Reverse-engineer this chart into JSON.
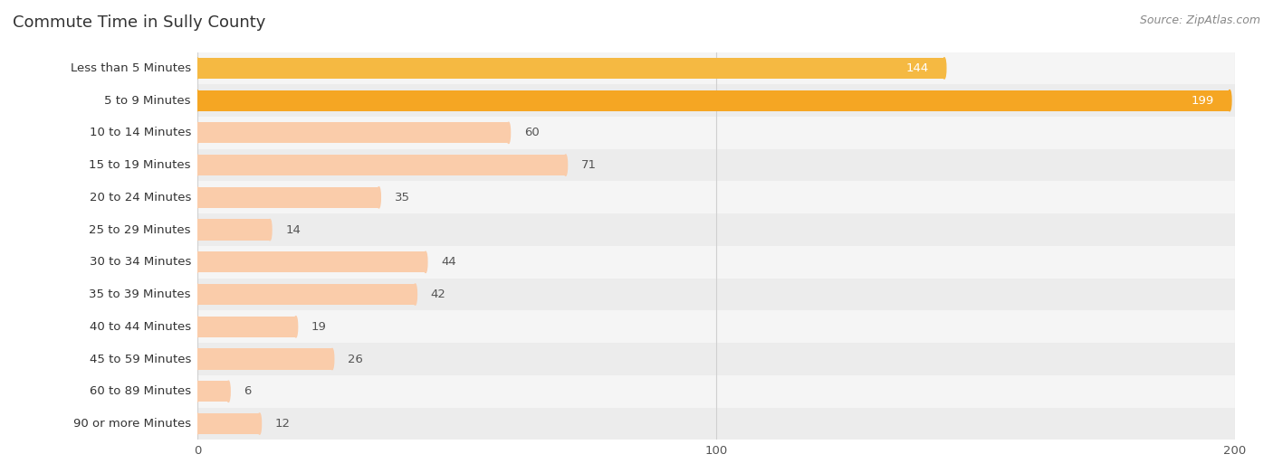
{
  "title": "Commute Time in Sully County",
  "source": "Source: ZipAtlas.com",
  "categories": [
    "Less than 5 Minutes",
    "5 to 9 Minutes",
    "10 to 14 Minutes",
    "15 to 19 Minutes",
    "20 to 24 Minutes",
    "25 to 29 Minutes",
    "30 to 34 Minutes",
    "35 to 39 Minutes",
    "40 to 44 Minutes",
    "45 to 59 Minutes",
    "60 to 89 Minutes",
    "90 or more Minutes"
  ],
  "values": [
    144,
    199,
    60,
    71,
    35,
    14,
    44,
    42,
    19,
    26,
    6,
    12
  ],
  "color_high1": "#F5A623",
  "color_high2": "#F5B942",
  "color_low": "#FACCAA",
  "xticks": [
    0,
    100,
    200
  ],
  "xlim_max": 200,
  "title_fontsize": 13,
  "source_fontsize": 9,
  "bar_fontsize": 9.5,
  "cat_fontsize": 9.5,
  "row_even": "#f5f5f5",
  "row_odd": "#ececec",
  "grid_color": "#d0d0d0",
  "label_color": "#555555",
  "white": "#ffffff",
  "value_inside_color": "#ffffff",
  "value_outside_color": "#555555"
}
